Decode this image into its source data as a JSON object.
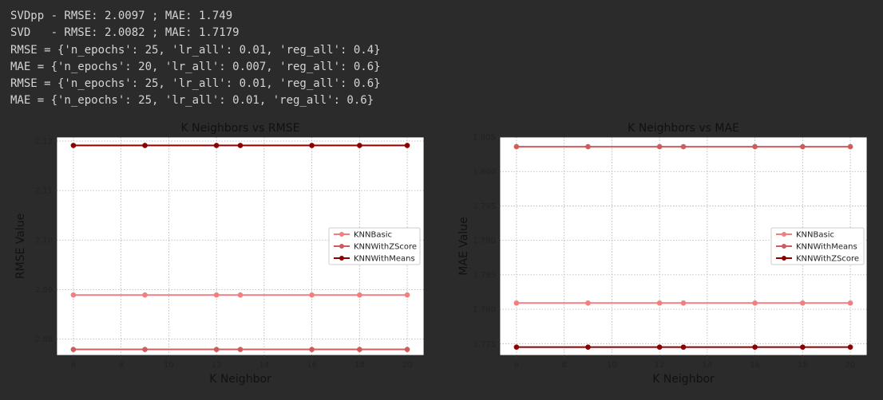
{
  "output_lines": [
    "SVDpp - RMSE: 2.0097 ; MAE: 1.749",
    "SVD   - RMSE: 2.0082 ; MAE: 1.7179",
    "RMSE = {'n_epochs': 25, 'lr_all': 0.01, 'reg_all': 0.4}",
    "MAE = {'n_epochs': 20, 'lr_all': 0.007, 'reg_all': 0.6}",
    "RMSE = {'n_epochs': 25, 'lr_all': 0.01, 'reg_all': 0.6}",
    "MAE = {'n_epochs': 25, 'lr_all': 0.01, 'reg_all': 0.6}"
  ],
  "colors": {
    "page_background": "#2b2b2b",
    "figure_background": "#2b2b2b",
    "plot_background": "#ffffff",
    "output_text": "#d4d4d4",
    "light": "#f08080",
    "medium": "#cd5c5c",
    "dark": "#8b0000"
  },
  "chart_data": [
    {
      "type": "line",
      "title": "K Neighbors vs RMSE",
      "xlabel": "K Neighbor",
      "ylabel": "RMSE Value",
      "x": [
        6,
        9,
        12,
        13,
        16,
        18,
        20
      ],
      "xlim": [
        5.3,
        20.7
      ],
      "ylim": [
        2.0767,
        2.1208
      ],
      "xticks": [
        6,
        8,
        10,
        12,
        14,
        16,
        18,
        20
      ],
      "yticks": [
        2.08,
        2.09,
        2.1,
        2.11,
        2.12
      ],
      "ytick_labels": [
        "2.08",
        "2.09",
        "2.10",
        "2.11",
        "2.12"
      ],
      "grid": true,
      "legend_position": "center-right",
      "series": [
        {
          "name": "KNNBasic",
          "color": "#f08080",
          "values": [
            2.0889,
            2.0889,
            2.0889,
            2.0889,
            2.0889,
            2.0889,
            2.0889
          ]
        },
        {
          "name": "KNNWithZScore",
          "color": "#cd5c5c",
          "values": [
            2.0779,
            2.0779,
            2.0779,
            2.0779,
            2.0779,
            2.0779,
            2.0779
          ]
        },
        {
          "name": "KNNWithMeans",
          "color": "#8b0000",
          "values": [
            2.1191,
            2.1191,
            2.1191,
            2.1191,
            2.1191,
            2.1191,
            2.1191
          ]
        }
      ]
    },
    {
      "type": "line",
      "title": "K Neighbors vs MAE",
      "xlabel": "K Neighbor",
      "ylabel": "MAE Value",
      "x": [
        6,
        9,
        12,
        13,
        16,
        18,
        20
      ],
      "xlim": [
        5.3,
        20.7
      ],
      "ylim": [
        1.7733,
        1.805
      ],
      "xticks": [
        6,
        8,
        10,
        12,
        14,
        16,
        18,
        20
      ],
      "yticks": [
        1.775,
        1.78,
        1.785,
        1.79,
        1.795,
        1.8,
        1.805
      ],
      "ytick_labels": [
        "1.775",
        "1.780",
        "1.785",
        "1.790",
        "1.795",
        "1.800",
        "1.805"
      ],
      "grid": true,
      "legend_position": "center-right",
      "series": [
        {
          "name": "KNNBasic",
          "color": "#f08080",
          "values": [
            1.7809,
            1.7809,
            1.7809,
            1.7809,
            1.7809,
            1.7809,
            1.7809
          ]
        },
        {
          "name": "KNNWithMeans",
          "color": "#cd5c5c",
          "values": [
            1.8036,
            1.8036,
            1.8036,
            1.8036,
            1.8036,
            1.8036,
            1.8036
          ]
        },
        {
          "name": "KNNWithZScore",
          "color": "#8b0000",
          "values": [
            1.7745,
            1.7745,
            1.7745,
            1.7745,
            1.7745,
            1.7745,
            1.7745
          ]
        }
      ]
    }
  ]
}
